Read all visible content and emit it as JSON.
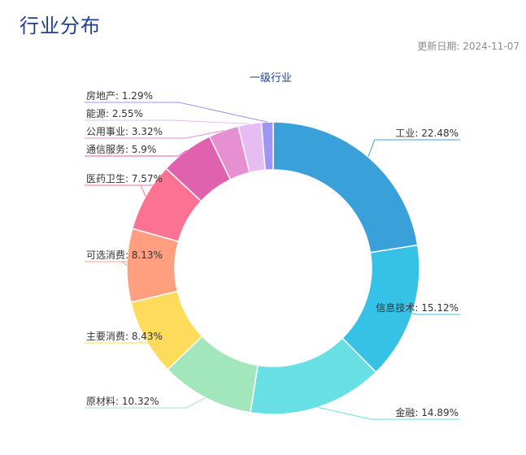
{
  "page": {
    "title": "行业分布",
    "update_date": "更新日期: 2024-11-07"
  },
  "chart_data": {
    "type": "pie",
    "variant": "donut",
    "title": "一级行业",
    "legend": "none",
    "slices": [
      {
        "name": "工业",
        "value": 22.48,
        "label": "工业: 22.48%",
        "color": "#3aa0da"
      },
      {
        "name": "信息技术",
        "value": 15.12,
        "label": "信息技术: 15.12%",
        "color": "#35c2e6"
      },
      {
        "name": "金融",
        "value": 14.89,
        "label": "金融: 14.89%",
        "color": "#67dfe3"
      },
      {
        "name": "原材料",
        "value": 10.32,
        "label": "原材料: 10.32%",
        "color": "#a2e6bb"
      },
      {
        "name": "主要消费",
        "value": 8.43,
        "label": "主要消费: 8.43%",
        "color": "#ffdb5c"
      },
      {
        "name": "可选消费",
        "value": 8.13,
        "label": "可选消费: 8.13%",
        "color": "#ff9f7f"
      },
      {
        "name": "医药卫生",
        "value": 7.57,
        "label": "医药卫生: 7.57%",
        "color": "#fb7293"
      },
      {
        "name": "通信服务",
        "value": 5.9,
        "label": "通信服务: 5.9%",
        "color": "#e062ae"
      },
      {
        "name": "公用事业",
        "value": 3.32,
        "label": "公用事业: 3.32%",
        "color": "#e690d1"
      },
      {
        "name": "能源",
        "value": 2.55,
        "label": "能源: 2.55%",
        "color": "#e7bcf3"
      },
      {
        "name": "房地产",
        "value": 1.29,
        "label": "房地产: 1.29%",
        "color": "#9d96f5"
      }
    ]
  }
}
